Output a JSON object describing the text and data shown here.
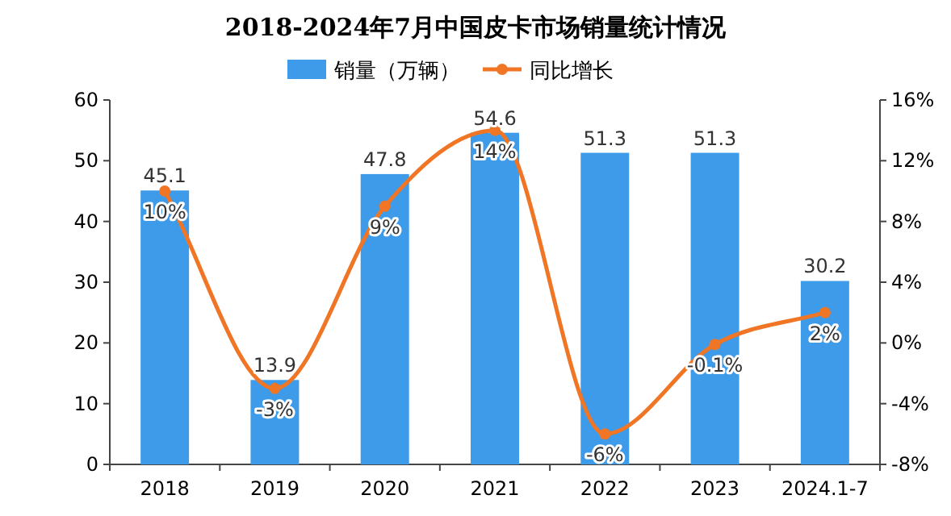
{
  "chart_data": {
    "type": "bar",
    "title": "2018-2024年7月中国皮卡市场销量统计情况",
    "categories": [
      "2018",
      "2019",
      "2020",
      "2021",
      "2022",
      "2023",
      "2024.1-7"
    ],
    "series": [
      {
        "name": "销量（万辆）",
        "color": "#3d9be9",
        "values": [
          45.1,
          13.9,
          47.8,
          54.6,
          51.3,
          51.3,
          30.2
        ],
        "value_labels": [
          "45.1",
          "13.9",
          "47.8",
          "54.6",
          "51.3",
          "51.3",
          "30.2"
        ]
      },
      {
        "name": "同比增长",
        "type": "line",
        "axis": "y2",
        "color": "#f07525",
        "marker": "circle",
        "values": [
          10,
          -3,
          9,
          14,
          -6,
          -0.1,
          2
        ],
        "value_labels": [
          "10%",
          "-3%",
          "9%",
          "14%",
          "-6%",
          "-0.1%",
          "2%"
        ]
      }
    ],
    "ylim": [
      0,
      60
    ],
    "yticks": [
      0,
      10,
      20,
      30,
      40,
      50,
      60
    ],
    "y2lim": [
      -8,
      16
    ],
    "y2ticks": [
      {
        "value": -8,
        "label": "-8%"
      },
      {
        "value": -4,
        "label": "-4%"
      },
      {
        "value": 0,
        "label": "0%"
      },
      {
        "value": 4,
        "label": "4%"
      },
      {
        "value": 8,
        "label": "8%"
      },
      {
        "value": 12,
        "label": "12%"
      },
      {
        "value": 16,
        "label": "16%"
      }
    ],
    "legend": "top",
    "grid": false
  }
}
